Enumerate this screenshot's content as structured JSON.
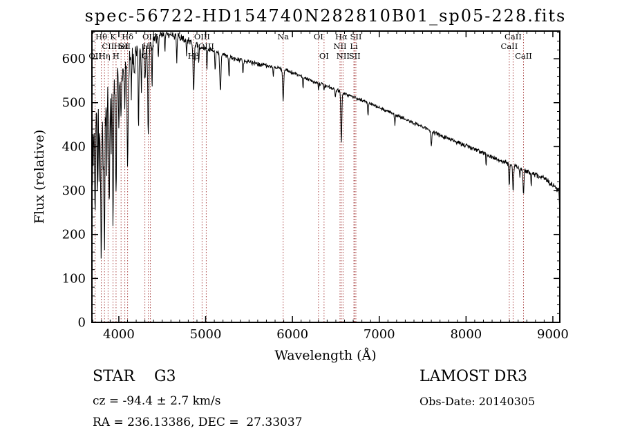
{
  "chart_data": {
    "type": "line",
    "title": "spec-56722-HD154740N282810B01_sp05-228.fits",
    "xlabel": "Wavelength (Å)",
    "ylabel": "Flux (relative)",
    "xlim": [
      3690,
      9080
    ],
    "ylim": [
      0,
      663
    ],
    "x_ticks": [
      4000,
      5000,
      6000,
      7000,
      8000,
      9000
    ],
    "y_ticks": [
      0,
      100,
      200,
      300,
      400,
      500,
      600
    ],
    "x_minor_step": 100,
    "y_minor_step": 20,
    "line_color": "#000000",
    "marker_color": "#aa4444",
    "x_start": 3692,
    "x_end": 9080,
    "x_step": 4,
    "noise_seed": 20140305,
    "continuum": [
      [
        3692,
        380
      ],
      [
        3730,
        430
      ],
      [
        3780,
        450
      ],
      [
        3830,
        480
      ],
      [
        3880,
        510
      ],
      [
        3930,
        530
      ],
      [
        3990,
        550
      ],
      [
        4050,
        570
      ],
      [
        4120,
        590
      ],
      [
        4200,
        615
      ],
      [
        4300,
        625
      ],
      [
        4400,
        645
      ],
      [
        4500,
        655
      ],
      [
        4600,
        656
      ],
      [
        4700,
        650
      ],
      [
        4800,
        642
      ],
      [
        4900,
        630
      ],
      [
        5000,
        622
      ],
      [
        5100,
        616
      ],
      [
        5200,
        610
      ],
      [
        5350,
        600
      ],
      [
        5500,
        592
      ],
      [
        5650,
        586
      ],
      [
        5800,
        580
      ],
      [
        5950,
        572
      ],
      [
        6100,
        560
      ],
      [
        6250,
        548
      ],
      [
        6400,
        538
      ],
      [
        6550,
        525
      ],
      [
        6700,
        513
      ],
      [
        6850,
        502
      ],
      [
        7000,
        488
      ],
      [
        7150,
        477
      ],
      [
        7300,
        462
      ],
      [
        7450,
        450
      ],
      [
        7600,
        436
      ],
      [
        7750,
        422
      ],
      [
        7900,
        410
      ],
      [
        8050,
        398
      ],
      [
        8200,
        386
      ],
      [
        8350,
        372
      ],
      [
        8500,
        360
      ],
      [
        8650,
        348
      ],
      [
        8800,
        336
      ],
      [
        8900,
        328
      ],
      [
        9000,
        312
      ],
      [
        9055,
        302
      ],
      [
        9070,
        298
      ],
      [
        9080,
        238
      ]
    ],
    "absorption_lines": [
      [
        3727,
        7,
        180
      ],
      [
        3752,
        5,
        140
      ],
      [
        3770,
        5,
        120
      ],
      [
        3798,
        8,
        300
      ],
      [
        3820,
        5,
        120
      ],
      [
        3835,
        8,
        300
      ],
      [
        3862,
        5,
        130
      ],
      [
        3889,
        8,
        260
      ],
      [
        3912,
        5,
        120
      ],
      [
        3933,
        7,
        300
      ],
      [
        3968,
        7,
        280
      ],
      [
        4000,
        5,
        100
      ],
      [
        4026,
        6,
        120
      ],
      [
        4069,
        5,
        90
      ],
      [
        4101,
        9,
        210
      ],
      [
        4144,
        5,
        70
      ],
      [
        4180,
        5,
        60
      ],
      [
        4227,
        6,
        170
      ],
      [
        4260,
        5,
        90
      ],
      [
        4300,
        10,
        80
      ],
      [
        4340,
        9,
        210
      ],
      [
        4383,
        6,
        90
      ],
      [
        4455,
        5,
        50
      ],
      [
        4531,
        5,
        45
      ],
      [
        4668,
        6,
        55
      ],
      [
        4780,
        5,
        35
      ],
      [
        4861,
        9,
        110
      ],
      [
        4920,
        5,
        40
      ],
      [
        5015,
        5,
        40
      ],
      [
        5110,
        6,
        40
      ],
      [
        5170,
        10,
        85
      ],
      [
        5270,
        7,
        50
      ],
      [
        5430,
        6,
        30
      ],
      [
        5780,
        5,
        25
      ],
      [
        5893,
        8,
        72
      ],
      [
        6122,
        5,
        25
      ],
      [
        6300,
        4,
        18
      ],
      [
        6364,
        4,
        15
      ],
      [
        6495,
        5,
        20
      ],
      [
        6563,
        8,
        115
      ],
      [
        6870,
        6,
        30
      ],
      [
        7180,
        6,
        25
      ],
      [
        7600,
        8,
        35
      ],
      [
        8230,
        5,
        25
      ],
      [
        8498,
        6,
        48
      ],
      [
        8542,
        7,
        62
      ],
      [
        8620,
        4,
        25
      ],
      [
        8662,
        7,
        58
      ],
      [
        8750,
        5,
        30
      ]
    ],
    "noise_profile": [
      [
        3692,
        85
      ],
      [
        3800,
        75
      ],
      [
        3900,
        60
      ],
      [
        4000,
        45
      ],
      [
        4150,
        35
      ],
      [
        4300,
        22
      ],
      [
        4500,
        13
      ],
      [
        4800,
        10
      ],
      [
        5200,
        7
      ],
      [
        5800,
        6
      ],
      [
        6500,
        5
      ],
      [
        7200,
        5
      ],
      [
        8000,
        6
      ],
      [
        8700,
        7
      ],
      [
        9080,
        8
      ]
    ],
    "spectral_lines": [
      {
        "label": "OII",
        "wl": 3727,
        "row": 3
      },
      {
        "label": "Hθ",
        "wl": 3798,
        "row": 1
      },
      {
        "label": "Hη",
        "wl": 3835,
        "row": 3
      },
      {
        "label": "CII",
        "wl": 3876,
        "row": 2
      },
      {
        "label": "K",
        "wl": 3933,
        "row": 1
      },
      {
        "label": "H",
        "wl": 3968,
        "row": 3
      },
      {
        "label": "HeI",
        "wl": 4026,
        "row": 2
      },
      {
        "label": "SII",
        "wl": 4069,
        "row": 2
      },
      {
        "label": "Hδ",
        "wl": 4101,
        "row": 1
      },
      {
        "label": "G",
        "wl": 4300,
        "row": 3
      },
      {
        "label": "Hγ",
        "wl": 4340,
        "row": 2
      },
      {
        "label": "OIII",
        "wl": 4363,
        "row": 1
      },
      {
        "label": "Hβ",
        "wl": 4861,
        "row": 3
      },
      {
        "label": "OIII",
        "wl": 4959,
        "row": 1
      },
      {
        "label": "OIII",
        "wl": 5007,
        "row": 2
      },
      {
        "label": "Na",
        "wl": 5893,
        "row": 1
      },
      {
        "label": "OI",
        "wl": 6300,
        "row": 1
      },
      {
        "label": "OI",
        "wl": 6364,
        "row": 3
      },
      {
        "label": "NII",
        "wl": 6548,
        "row": 2
      },
      {
        "label": "Hα",
        "wl": 6563,
        "row": 1
      },
      {
        "label": "NII",
        "wl": 6583,
        "row": 3
      },
      {
        "label": "Li",
        "wl": 6708,
        "row": 2
      },
      {
        "label": "SII",
        "wl": 6717,
        "row": 3
      },
      {
        "label": "SII",
        "wl": 6731,
        "row": 1
      },
      {
        "label": "CaII",
        "wl": 8498,
        "row": 2
      },
      {
        "label": "CaII",
        "wl": 8542,
        "row": 1
      },
      {
        "label": "CaII",
        "wl": 8662,
        "row": 3
      }
    ]
  },
  "annotations": {
    "class_label": "STAR    G3",
    "survey": "LAMOST DR3",
    "cz": "cz = -94.4 ± 2.7 km/s",
    "obs_date": "Obs-Date: 20140305",
    "ra_dec": "RA = 236.13386, DEC =  27.33037"
  }
}
